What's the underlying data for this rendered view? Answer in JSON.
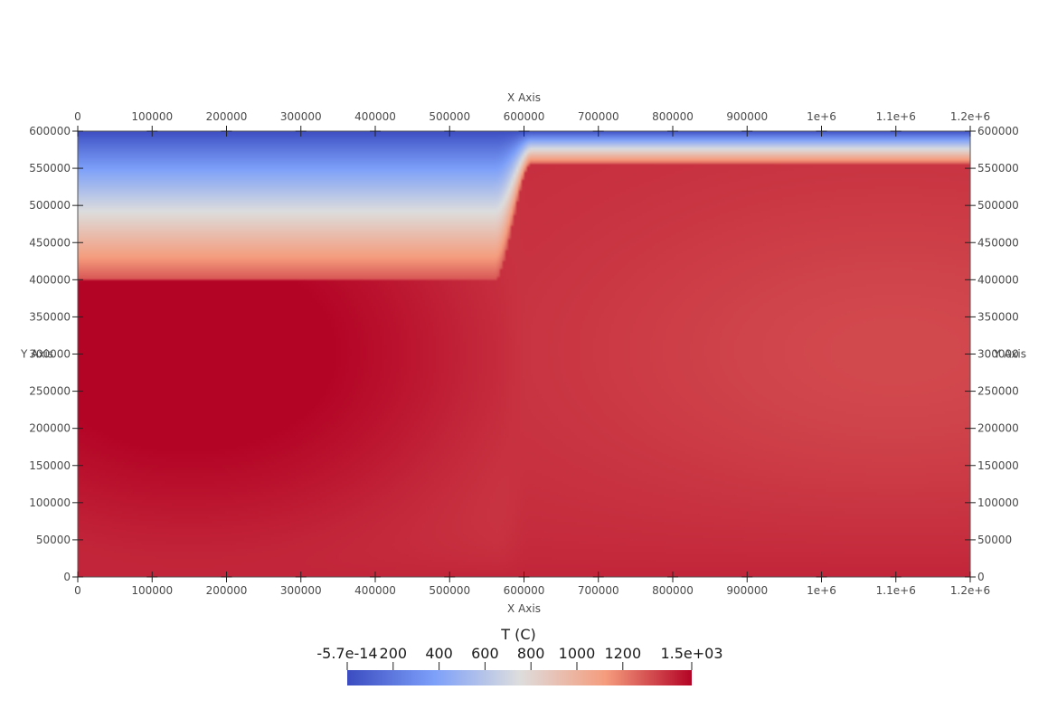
{
  "chart_data": {
    "type": "heatmap",
    "x_axis": {
      "title": "X Axis",
      "range": [
        0,
        1200000
      ],
      "ticks": [
        0,
        100000,
        200000,
        300000,
        400000,
        500000,
        600000,
        700000,
        800000,
        900000,
        1000000,
        1100000,
        1200000
      ],
      "tick_labels": [
        "0",
        "100000",
        "200000",
        "300000",
        "400000",
        "500000",
        "600000",
        "700000",
        "800000",
        "900000",
        "1e+6",
        "1.1e+6",
        "1.2e+6"
      ]
    },
    "y_axis": {
      "title": "Y Axis",
      "range": [
        0,
        600000
      ],
      "ticks": [
        0,
        50000,
        100000,
        150000,
        200000,
        250000,
        300000,
        350000,
        400000,
        450000,
        500000,
        550000,
        600000
      ],
      "tick_labels": [
        "0",
        "50000",
        "100000",
        "150000",
        "200000",
        "250000",
        "300000",
        "350000",
        "400000",
        "450000",
        "500000",
        "550000",
        "600000"
      ]
    },
    "field": {
      "name": "T (C)",
      "range": [
        0,
        1500
      ],
      "left_region": {
        "x_range": [
          0,
          580000
        ],
        "surface_y": 600000,
        "isotherm_1300_y": 400000,
        "hot_core_value": 1480,
        "hot_core_center": [
          150000,
          300000
        ]
      },
      "right_region": {
        "x_range": [
          600000,
          1200000
        ],
        "surface_y": 600000,
        "isotherm_1300_y": 555000,
        "interior_value": 1400,
        "cool_core_value": 1330,
        "cool_core_center": [
          1100000,
          300000
        ]
      },
      "step_x_range": [
        560000,
        610000
      ],
      "bottom_value": 1420
    },
    "colorbar": {
      "title": "T (C)",
      "colormap": "Cool to Warm",
      "range": [
        -5.7e-14,
        1500
      ],
      "ticks": [
        -5.7e-14,
        200,
        400,
        600,
        800,
        1000,
        1200,
        1500
      ],
      "tick_labels": [
        "-5.7e-14",
        "200",
        "400",
        "600",
        "800",
        "1000",
        "1200",
        "1.5e+03"
      ],
      "colors": [
        "#3b4cc0",
        "#dddddd",
        "#b40426"
      ]
    },
    "grid": false,
    "legend_position": "bottom-center"
  }
}
